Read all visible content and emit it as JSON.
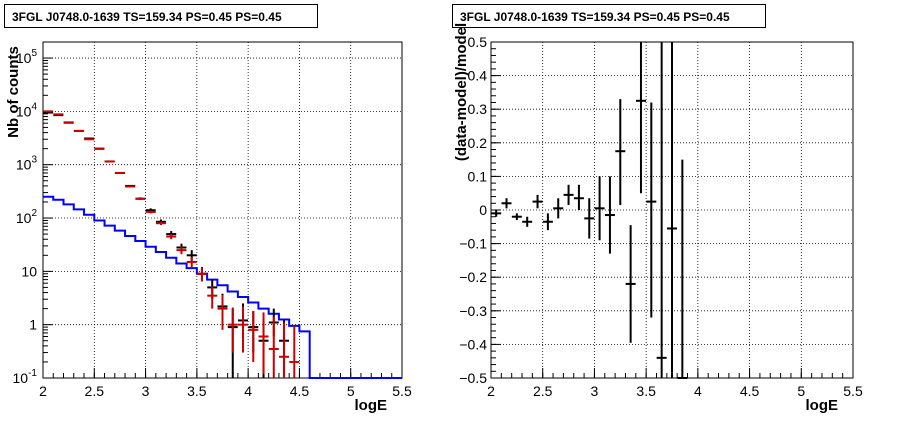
{
  "chart_data": [
    {
      "type": "line",
      "title": "3FGL J0748.0-1639 TS=159.34 PS=0.45 PS=0.45",
      "xlabel": "logE",
      "ylabel": "Nb of counts",
      "xlim": [
        2,
        5.5
      ],
      "ylim": [
        0.1,
        200000
      ],
      "yscale": "log",
      "grid": true,
      "x_ticks": [
        "2",
        "2.5",
        "3",
        "3.5",
        "4",
        "4.5",
        "5",
        "5.5"
      ],
      "y_ticks": [
        {
          "value": 0.1,
          "mant": "10",
          "exp": "-1"
        },
        {
          "value": 1,
          "mant": "1",
          "exp": ""
        },
        {
          "value": 10,
          "mant": "10",
          "exp": ""
        },
        {
          "value": 100,
          "mant": "10",
          "exp": "2"
        },
        {
          "value": 1000,
          "mant": "10",
          "exp": "3"
        },
        {
          "value": 10000,
          "mant": "10",
          "exp": "4"
        },
        {
          "value": 100000,
          "mant": "10",
          "exp": "5"
        }
      ],
      "bin_edges": [
        2.0,
        2.1,
        2.2,
        2.3,
        2.4,
        2.5,
        2.6,
        2.7,
        2.8,
        2.9,
        3.0,
        3.1,
        3.2,
        3.3,
        3.4,
        3.5,
        3.6,
        3.7,
        3.8,
        3.9,
        4.0,
        4.1,
        4.2,
        4.3,
        4.4,
        4.5,
        4.6,
        4.7,
        4.8,
        4.9,
        5.0,
        5.1,
        5.2,
        5.3,
        5.4,
        5.5
      ],
      "series": [
        {
          "kind": "histogram",
          "color": "#0000ff",
          "values": [
            250,
            220,
            180,
            145,
            115,
            90,
            72,
            58,
            46,
            37,
            29,
            23,
            18,
            14,
            11.5,
            9,
            7,
            5.5,
            4.2,
            3.3,
            2.6,
            2.0,
            1.6,
            1.25,
            0.95,
            0.75,
            0.1,
            0.1,
            0.1,
            0.1,
            0.1,
            0.1,
            0.1,
            0.1,
            0.1
          ]
        },
        {
          "kind": "points",
          "color": "#000000",
          "x": [
            2.05,
            2.15,
            2.25,
            2.35,
            2.45,
            2.55,
            2.65,
            2.75,
            2.85,
            2.95,
            3.05,
            3.15,
            3.25,
            3.35,
            3.45,
            3.55,
            3.65,
            3.75,
            3.85,
            3.95,
            4.05,
            4.15,
            4.25,
            4.35
          ],
          "y": [
            9500,
            8500,
            6200,
            4300,
            3100,
            2000,
            1150,
            700,
            400,
            230,
            140,
            85,
            50,
            28,
            20,
            9,
            5,
            2.2,
            0.9,
            1.2,
            0.9,
            0.5,
            1.1,
            0.5
          ],
          "y_low": [
            9300,
            8300,
            6000,
            4200,
            3000,
            1950,
            1100,
            675,
            385,
            220,
            128,
            76,
            43,
            23,
            16,
            6.5,
            3,
            1.0,
            0.1,
            0.5,
            0.3,
            0.1,
            0.6,
            0.1
          ],
          "y_high": [
            9700,
            8700,
            6400,
            4400,
            3200,
            2050,
            1200,
            725,
            415,
            245,
            152,
            94,
            57,
            33,
            25,
            12,
            7,
            3.8,
            2.0,
            2.5,
            1.8,
            1.3,
            2.0,
            1.2
          ]
        },
        {
          "kind": "points",
          "color": "#cc0000",
          "x": [
            2.05,
            2.15,
            2.25,
            2.35,
            2.45,
            2.55,
            2.65,
            2.75,
            2.85,
            2.95,
            3.05,
            3.15,
            3.25,
            3.35,
            3.45,
            3.55,
            3.65,
            3.75,
            3.85,
            3.95,
            4.05,
            4.15,
            4.25,
            4.35,
            4.45
          ],
          "y": [
            10000,
            8800,
            6100,
            4300,
            3000,
            1980,
            1150,
            700,
            390,
            230,
            130,
            80,
            45,
            25,
            15,
            9,
            3.5,
            2.0,
            1.0,
            1.0,
            0.8,
            0.6,
            0.35,
            0.25,
            0.2
          ],
          "y_low": [
            9800,
            8600,
            5900,
            4150,
            2900,
            1930,
            1100,
            675,
            375,
            220,
            122,
            74,
            40,
            21,
            12,
            6.5,
            2.0,
            0.8,
            0.3,
            0.3,
            0.2,
            0.12,
            0.1,
            0.1,
            0.1
          ],
          "y_high": [
            10200,
            9000,
            6300,
            4450,
            3100,
            2030,
            1200,
            725,
            405,
            240,
            138,
            86,
            50,
            29,
            18.5,
            11.5,
            5.2,
            3.6,
            2.1,
            2.2,
            1.8,
            1.7,
            1.4,
            1.1,
            0.95
          ]
        }
      ]
    },
    {
      "type": "scatter",
      "title": "3FGL J0748.0-1639 TS=159.34 PS=0.45 PS=0.45",
      "xlabel": "logE",
      "ylabel": "(data-model)/model",
      "xlim": [
        2,
        5.5
      ],
      "ylim": [
        -0.5,
        0.5
      ],
      "grid": true,
      "x_ticks": [
        "2",
        "2.5",
        "3",
        "3.5",
        "4",
        "4.5",
        "5",
        "5.5"
      ],
      "y_ticks": [
        "0.5",
        "0.4",
        "0.3",
        "0.2",
        "0.1",
        "0",
        "−0.1",
        "−0.2",
        "−0.3",
        "−0.4",
        "−0.5"
      ],
      "series": [
        {
          "color": "#000000",
          "x": [
            2.05,
            2.15,
            2.25,
            2.35,
            2.45,
            2.55,
            2.65,
            2.75,
            2.85,
            2.95,
            3.05,
            3.15,
            3.25,
            3.35,
            3.45,
            3.55,
            3.65,
            3.75,
            3.85
          ],
          "y": [
            -0.01,
            0.02,
            -0.02,
            -0.035,
            0.025,
            -0.035,
            0.005,
            0.045,
            0.035,
            -0.025,
            0.005,
            -0.015,
            0.175,
            -0.22,
            0.325,
            0.025,
            -0.44,
            -0.055,
            -0.5
          ],
          "y_low": [
            -0.02,
            0.005,
            -0.03,
            -0.05,
            0.005,
            -0.06,
            -0.025,
            0.015,
            0.0,
            -0.085,
            -0.09,
            -0.13,
            0.015,
            -0.395,
            0.05,
            -0.32,
            -0.5,
            -0.5,
            -0.5
          ],
          "y_high": [
            0.0,
            0.035,
            -0.01,
            -0.02,
            0.045,
            -0.01,
            0.035,
            0.075,
            0.075,
            0.035,
            0.1,
            0.1,
            0.33,
            -0.045,
            0.5,
            0.32,
            0.5,
            0.5,
            0.15
          ]
        }
      ]
    }
  ]
}
